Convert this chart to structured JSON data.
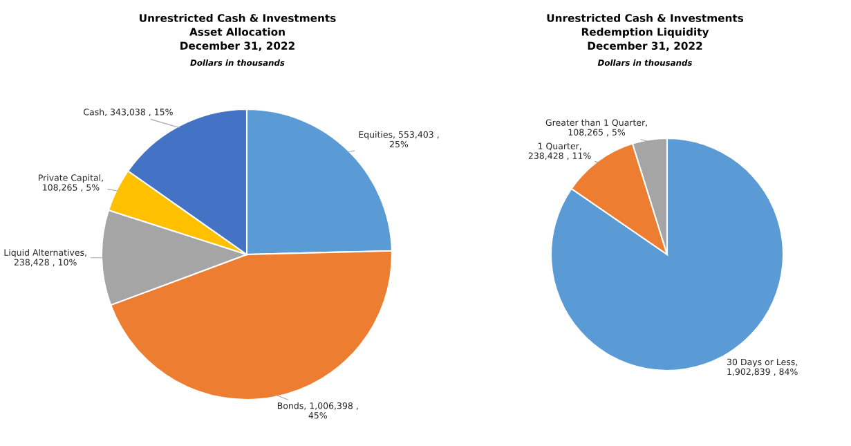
{
  "chart_data": [
    {
      "type": "pie",
      "title": "Unrestricted Cash & Investments\nAsset Allocation\nDecember 31, 2022",
      "subtitle": "Dollars in thousands",
      "categories": [
        "Equities",
        "Bonds",
        "Liquid Alternatives",
        "Private Capital",
        "Cash"
      ],
      "values": [
        553403,
        1006398,
        238428,
        108265,
        343038
      ],
      "value_labels": [
        ", 553,403 ,\n25%",
        ", 1,006,398 ,\n45%",
        ",\n238,428 , 10%",
        ",\n108,265 , 5%",
        ", 343,038 , 15%"
      ],
      "colors": [
        "#5b9bd5",
        "#ed7d31",
        "#a5a5a5",
        "#ffc000",
        "#4472c4"
      ]
    },
    {
      "type": "pie",
      "title": "Unrestricted Cash & Investments\nRedemption Liquidity\nDecember 31, 2022",
      "subtitle": "Dollars in thousands",
      "categories": [
        "30 Days or Less",
        "1 Quarter",
        "Greater than 1 Quarter"
      ],
      "values": [
        1902839,
        238428,
        108265
      ],
      "value_labels": [
        ",\n1,902,839 , 84%",
        ",\n238,428 , 11%",
        ",\n108,265 , 5%"
      ],
      "colors": [
        "#5b9bd5",
        "#ed7d31",
        "#a5a5a5"
      ]
    }
  ]
}
